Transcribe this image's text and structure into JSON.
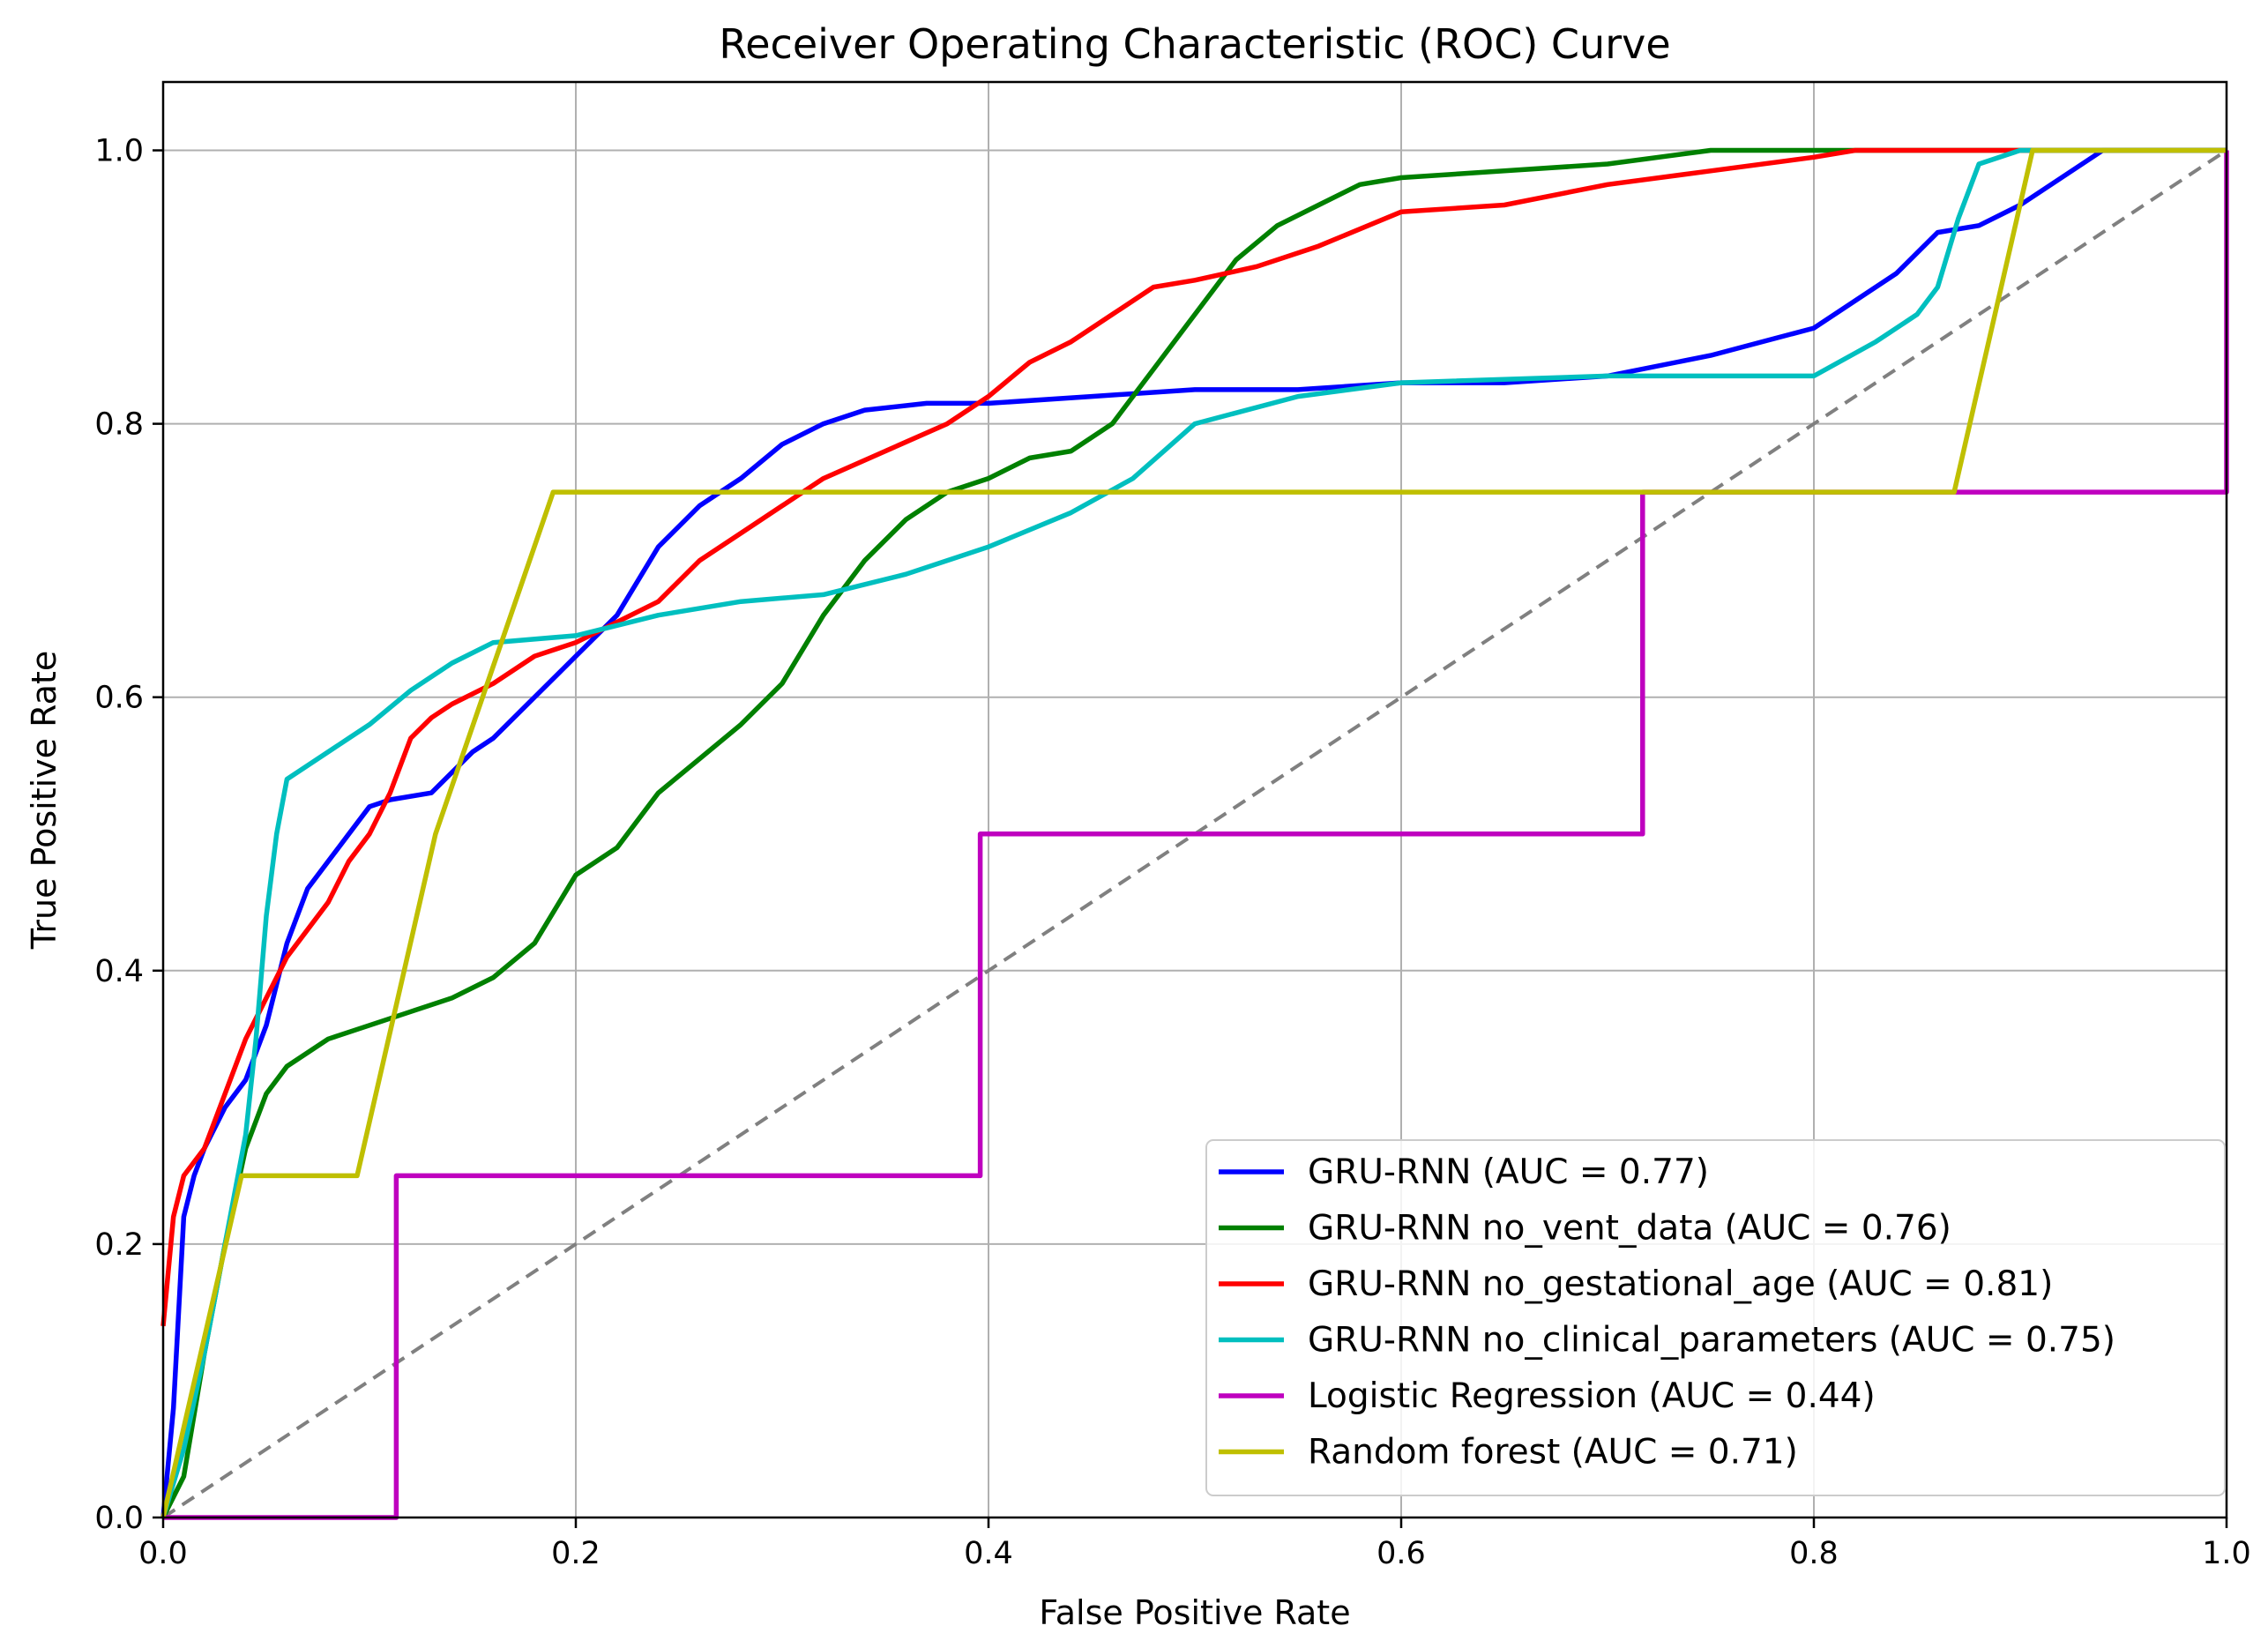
{
  "chart_data": {
    "type": "line",
    "title": "Receiver Operating Characteristic (ROC) Curve",
    "xlabel": "False Positive Rate",
    "ylabel": "True Positive Rate",
    "xlim": [
      0.0,
      1.0
    ],
    "ylim": [
      0.0,
      1.05
    ],
    "xticks": [
      0.0,
      0.2,
      0.4,
      0.6,
      0.8,
      1.0
    ],
    "yticks": [
      0.0,
      0.2,
      0.4,
      0.6,
      0.8,
      1.0
    ],
    "xtick_labels": [
      "0.0",
      "0.2",
      "0.4",
      "0.6",
      "0.8",
      "1.0"
    ],
    "ytick_labels": [
      "0.0",
      "0.2",
      "0.4",
      "0.6",
      "0.8",
      "1.0"
    ],
    "grid": true,
    "legend_position": "lower-right",
    "diagonal": {
      "x": [
        0,
        1
      ],
      "y": [
        0,
        1
      ],
      "color": "#808080",
      "style": "dashed"
    },
    "series": [
      {
        "name": "GRU-RNN (AUC = 0.77)",
        "color": "#0000ff",
        "step": false,
        "x": [
          0,
          0.005,
          0.01,
          0.015,
          0.02,
          0.03,
          0.04,
          0.05,
          0.06,
          0.07,
          0.08,
          0.09,
          0.1,
          0.11,
          0.13,
          0.15,
          0.16,
          0.18,
          0.2,
          0.22,
          0.24,
          0.26,
          0.28,
          0.3,
          0.32,
          0.34,
          0.37,
          0.4,
          0.45,
          0.5,
          0.55,
          0.6,
          0.65,
          0.7,
          0.75,
          0.8,
          0.82,
          0.84,
          0.86,
          0.88,
          0.9,
          0.92,
          0.94,
          1.0
        ],
        "y": [
          0,
          0.08,
          0.22,
          0.25,
          0.27,
          0.3,
          0.32,
          0.36,
          0.42,
          0.46,
          0.48,
          0.5,
          0.52,
          0.525,
          0.53,
          0.56,
          0.57,
          0.6,
          0.63,
          0.66,
          0.71,
          0.74,
          0.76,
          0.785,
          0.8,
          0.81,
          0.815,
          0.815,
          0.82,
          0.825,
          0.825,
          0.83,
          0.83,
          0.835,
          0.85,
          0.87,
          0.89,
          0.91,
          0.94,
          0.945,
          0.96,
          0.98,
          1.0,
          1.0
        ]
      },
      {
        "name": "GRU-RNN no_vent_data (AUC = 0.76)",
        "color": "#008000",
        "step": false,
        "x": [
          0,
          0.01,
          0.02,
          0.03,
          0.04,
          0.05,
          0.06,
          0.08,
          0.1,
          0.12,
          0.14,
          0.16,
          0.18,
          0.2,
          0.22,
          0.24,
          0.26,
          0.28,
          0.3,
          0.32,
          0.34,
          0.36,
          0.38,
          0.4,
          0.42,
          0.44,
          0.46,
          0.48,
          0.5,
          0.52,
          0.54,
          0.56,
          0.58,
          0.6,
          0.65,
          0.7,
          0.75,
          0.8,
          1.0
        ],
        "y": [
          0,
          0.03,
          0.12,
          0.2,
          0.27,
          0.31,
          0.33,
          0.35,
          0.36,
          0.37,
          0.38,
          0.395,
          0.42,
          0.47,
          0.49,
          0.53,
          0.555,
          0.58,
          0.61,
          0.66,
          0.7,
          0.73,
          0.75,
          0.76,
          0.775,
          0.78,
          0.8,
          0.84,
          0.88,
          0.92,
          0.945,
          0.96,
          0.975,
          0.98,
          0.985,
          0.99,
          1.0,
          1.0,
          1.0
        ]
      },
      {
        "name": "GRU-RNN no_gestational_age (AUC = 0.81)",
        "color": "#ff0000",
        "step": false,
        "x": [
          0,
          0.005,
          0.01,
          0.02,
          0.03,
          0.04,
          0.05,
          0.06,
          0.07,
          0.08,
          0.09,
          0.1,
          0.11,
          0.12,
          0.13,
          0.14,
          0.16,
          0.18,
          0.2,
          0.22,
          0.24,
          0.26,
          0.28,
          0.3,
          0.32,
          0.35,
          0.38,
          0.4,
          0.42,
          0.44,
          0.46,
          0.48,
          0.5,
          0.53,
          0.56,
          0.6,
          0.65,
          0.7,
          0.75,
          0.8,
          0.82,
          1.0
        ],
        "y": [
          0.14,
          0.22,
          0.25,
          0.27,
          0.31,
          0.35,
          0.38,
          0.41,
          0.43,
          0.45,
          0.48,
          0.5,
          0.53,
          0.57,
          0.585,
          0.595,
          0.61,
          0.63,
          0.64,
          0.655,
          0.67,
          0.7,
          0.72,
          0.74,
          0.76,
          0.78,
          0.8,
          0.82,
          0.845,
          0.86,
          0.88,
          0.9,
          0.905,
          0.915,
          0.93,
          0.955,
          0.96,
          0.975,
          0.985,
          0.995,
          1.0,
          1.0
        ]
      },
      {
        "name": "GRU-RNN no_clinical_parameters (AUC = 0.75)",
        "color": "#00bfbf",
        "step": false,
        "x": [
          0,
          0.01,
          0.02,
          0.03,
          0.04,
          0.045,
          0.05,
          0.055,
          0.06,
          0.07,
          0.08,
          0.09,
          0.1,
          0.12,
          0.14,
          0.16,
          0.2,
          0.24,
          0.28,
          0.32,
          0.36,
          0.4,
          0.44,
          0.47,
          0.5,
          0.55,
          0.6,
          0.7,
          0.8,
          0.83,
          0.85,
          0.86,
          0.87,
          0.88,
          0.9,
          1.0
        ],
        "y": [
          0,
          0.05,
          0.12,
          0.2,
          0.28,
          0.35,
          0.44,
          0.5,
          0.54,
          0.55,
          0.56,
          0.57,
          0.58,
          0.605,
          0.625,
          0.64,
          0.645,
          0.66,
          0.67,
          0.675,
          0.69,
          0.71,
          0.735,
          0.76,
          0.8,
          0.82,
          0.83,
          0.835,
          0.835,
          0.86,
          0.88,
          0.9,
          0.95,
          0.99,
          1.0,
          1.0
        ]
      },
      {
        "name": "Logistic Regression (AUC = 0.44)",
        "color": "#bf00bf",
        "step": false,
        "x": [
          0,
          0.113,
          0.113,
          0.396,
          0.396,
          0.717,
          0.717,
          1.0,
          1.0
        ],
        "y": [
          0,
          0,
          0.25,
          0.25,
          0.5,
          0.5,
          0.75,
          0.75,
          1.0
        ]
      },
      {
        "name": "Random forest (AUC = 0.71)",
        "color": "#bfbf00",
        "step": false,
        "x": [
          0,
          0.038,
          0.094,
          0.132,
          0.189,
          0.868,
          0.906,
          1.0
        ],
        "y": [
          0,
          0.25,
          0.25,
          0.5,
          0.75,
          0.75,
          1.0,
          1.0
        ]
      }
    ]
  }
}
